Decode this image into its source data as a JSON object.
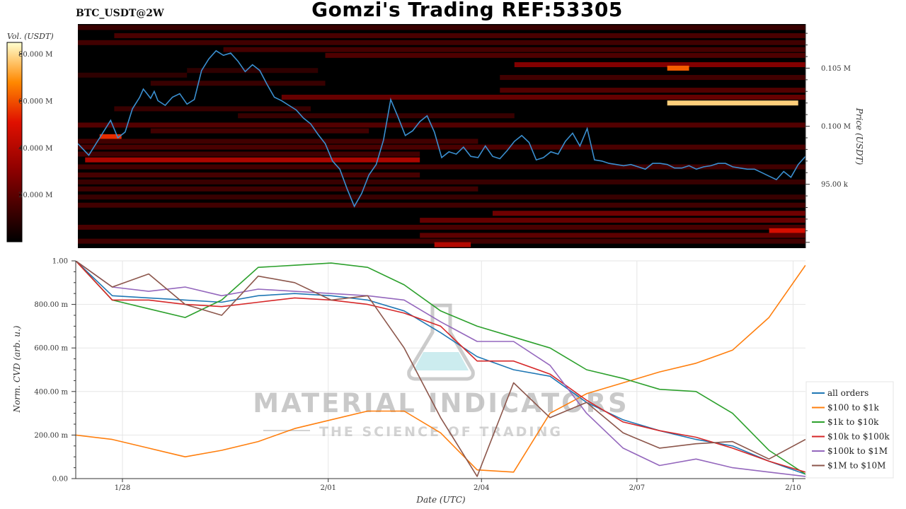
{
  "header": {
    "symbol": "BTC_USDT@2W",
    "title": "Gomzi's Trading REF:53305"
  },
  "watermark": {
    "line1": "MATERIAL INDICATORS",
    "line2": "THE SCIENCE OF TRADING"
  },
  "colors": {
    "all_orders": "#1f77b4",
    "s100_1k": "#ff7f0e",
    "s1k_10k": "#2ca02c",
    "s10k_100k": "#d62728",
    "s100k_1m": "#9467bd",
    "s1m_10m": "#8c564b",
    "heatmap_bg": "#000000",
    "price_line": "#3a8fd0"
  },
  "chart_data": [
    {
      "type": "heatmap",
      "title": "Gomzi's Trading REF:53305",
      "colorbar_label": "Vol. (USDT)",
      "colorbar_ticks": [
        "20.000 M",
        "40.000 M",
        "60.000 M",
        "80.000 M"
      ],
      "colorbar_tick_values": [
        20,
        40,
        60,
        80
      ],
      "colorbar_range": [
        0,
        85
      ],
      "ylabel": "Price (USDT)",
      "y_ticks": [
        "95.00 k",
        "0.100 M",
        "0.105 M"
      ],
      "y_tick_values": [
        95000,
        100000,
        105000
      ],
      "ylim": [
        89500,
        108800
      ],
      "x": [
        0,
        1.5,
        3,
        4.5,
        5.5,
        6.5,
        7.5,
        8.5,
        9,
        9.5,
        10,
        10.5,
        11,
        12,
        13,
        14,
        15,
        16,
        17,
        18,
        19,
        20,
        21,
        22,
        23,
        24,
        25,
        26,
        27,
        28,
        29,
        30,
        31,
        32,
        33,
        34,
        35,
        36,
        37,
        38,
        39,
        40,
        41,
        42,
        43,
        44,
        45,
        46,
        47,
        48,
        49,
        50,
        51,
        52,
        53,
        54,
        55,
        56,
        57,
        58,
        59,
        60,
        61,
        62,
        63,
        64,
        65,
        66,
        67,
        68,
        69,
        70,
        71,
        72,
        73,
        74,
        75,
        76,
        77,
        78,
        79,
        80,
        81,
        82,
        83,
        84,
        85,
        86,
        87,
        88,
        89,
        90,
        91,
        92,
        93,
        94,
        95,
        96,
        97,
        98,
        99,
        100
      ],
      "price": [
        98500,
        97500,
        99000,
        100500,
        99000,
        99500,
        101500,
        102500,
        103200,
        102800,
        102400,
        103000,
        102200,
        101800,
        102500,
        102800,
        101900,
        102300,
        104800,
        105800,
        106500,
        106100,
        106300,
        105600,
        104700,
        105300,
        104800,
        103600,
        102500,
        102200,
        101800,
        101400,
        100700,
        100200,
        99300,
        98500,
        97000,
        96300,
        94600,
        93100,
        94200,
        95800,
        96700,
        98800,
        102300,
        100800,
        99200,
        99600,
        100400,
        100900,
        99500,
        97300,
        97800,
        97600,
        98200,
        97400,
        97300,
        98300,
        97400,
        97200,
        97900,
        98700,
        99200,
        98600,
        97100,
        97300,
        97800,
        97600,
        98700,
        99400,
        98300,
        99800,
        97100,
        97000,
        96800,
        96700,
        96600,
        96700,
        96500,
        96300,
        96800,
        96800,
        96700,
        96400,
        96400,
        96600,
        96300,
        96500,
        96600,
        96800,
        96800,
        96500,
        96400,
        96300,
        96300,
        96000,
        95700,
        95400,
        96100,
        95600,
        96700,
        97400
      ],
      "bands": [
        {
          "price": 108500,
          "x0": 0,
          "x1": 100,
          "vol": 12
        },
        {
          "price": 107800,
          "x0": 5,
          "x1": 100,
          "vol": 16
        },
        {
          "price": 107200,
          "x0": 0,
          "x1": 100,
          "vol": 14
        },
        {
          "price": 106600,
          "x0": 20,
          "x1": 100,
          "vol": 15
        },
        {
          "price": 106100,
          "x0": 34,
          "x1": 100,
          "vol": 17
        },
        {
          "price": 105300,
          "x0": 60,
          "x1": 100,
          "vol": 28
        },
        {
          "price": 105000,
          "x0": 81,
          "x1": 84,
          "vol": 62
        },
        {
          "price": 104800,
          "x0": 15,
          "x1": 33,
          "vol": 10
        },
        {
          "price": 104400,
          "x0": 0,
          "x1": 15,
          "vol": 10
        },
        {
          "price": 104200,
          "x0": 58,
          "x1": 100,
          "vol": 14
        },
        {
          "price": 103700,
          "x0": 10,
          "x1": 34,
          "vol": 12
        },
        {
          "price": 103100,
          "x0": 58,
          "x1": 100,
          "vol": 18
        },
        {
          "price": 102500,
          "x0": 28,
          "x1": 100,
          "vol": 22
        },
        {
          "price": 102000,
          "x0": 81,
          "x1": 99,
          "vol": 78
        },
        {
          "price": 101500,
          "x0": 5,
          "x1": 32,
          "vol": 12
        },
        {
          "price": 100900,
          "x0": 22,
          "x1": 60,
          "vol": 12
        },
        {
          "price": 100100,
          "x0": 0,
          "x1": 100,
          "vol": 18
        },
        {
          "price": 99600,
          "x0": 10,
          "x1": 40,
          "vol": 14
        },
        {
          "price": 99100,
          "x0": 3,
          "x1": 6,
          "vol": 55
        },
        {
          "price": 98700,
          "x0": 0,
          "x1": 55,
          "vol": 14
        },
        {
          "price": 98200,
          "x0": 0,
          "x1": 100,
          "vol": 16
        },
        {
          "price": 97600,
          "x0": 0,
          "x1": 47,
          "vol": 14
        },
        {
          "price": 97100,
          "x0": 1,
          "x1": 47,
          "vol": 38
        },
        {
          "price": 96500,
          "x0": 0,
          "x1": 100,
          "vol": 14
        },
        {
          "price": 95800,
          "x0": 0,
          "x1": 47,
          "vol": 15
        },
        {
          "price": 95200,
          "x0": 0,
          "x1": 100,
          "vol": 12
        },
        {
          "price": 94600,
          "x0": 0,
          "x1": 55,
          "vol": 14
        },
        {
          "price": 93900,
          "x0": 0,
          "x1": 100,
          "vol": 12
        },
        {
          "price": 93200,
          "x0": 0,
          "x1": 100,
          "vol": 14
        },
        {
          "price": 92500,
          "x0": 57,
          "x1": 100,
          "vol": 24
        },
        {
          "price": 91900,
          "x0": 47,
          "x1": 100,
          "vol": 22
        },
        {
          "price": 91300,
          "x0": 0,
          "x1": 100,
          "vol": 16
        },
        {
          "price": 91000,
          "x0": 95,
          "x1": 100,
          "vol": 48
        },
        {
          "price": 90600,
          "x0": 47,
          "x1": 100,
          "vol": 20
        },
        {
          "price": 90100,
          "x0": 0,
          "x1": 100,
          "vol": 14
        },
        {
          "price": 89800,
          "x0": 49,
          "x1": 54,
          "vol": 40
        }
      ]
    },
    {
      "type": "line",
      "ylabel": "Norm. CVD (arb. u.)",
      "xlabel": "Date (UTC)",
      "y_ticks": [
        "0.00",
        "200.00 m",
        "400.00 m",
        "600.00 m",
        "800.00 m",
        "1.00"
      ],
      "y_tick_values": [
        0,
        0.2,
        0.4,
        0.6,
        0.8,
        1.0
      ],
      "ylim": [
        0,
        1.0
      ],
      "x_ticks": [
        "1/28",
        "2/01",
        "2/04",
        "2/07",
        "2/10"
      ],
      "x_tick_values": [
        6.4,
        34.6,
        55.6,
        76.9,
        98.3
      ],
      "x": [
        0,
        5,
        10,
        15,
        20,
        25,
        30,
        35,
        40,
        45,
        50,
        55,
        60,
        65,
        70,
        75,
        80,
        85,
        90,
        95,
        100
      ],
      "series": [
        {
          "name": "all orders",
          "key": "all_orders",
          "values": [
            1.0,
            0.84,
            0.83,
            0.82,
            0.81,
            0.84,
            0.85,
            0.84,
            0.82,
            0.77,
            0.67,
            0.56,
            0.5,
            0.47,
            0.35,
            0.27,
            0.22,
            0.18,
            0.15,
            0.08,
            0.02
          ]
        },
        {
          "name": "$100 to $1k",
          "key": "s100_1k",
          "values": [
            0.2,
            0.18,
            0.14,
            0.1,
            0.13,
            0.17,
            0.23,
            0.27,
            0.31,
            0.31,
            0.21,
            0.04,
            0.03,
            0.3,
            0.39,
            0.44,
            0.49,
            0.53,
            0.59,
            0.74,
            0.98
          ]
        },
        {
          "name": "$1k to $10k",
          "key": "s1k_10k",
          "values": [
            1.0,
            0.82,
            0.78,
            0.74,
            0.82,
            0.97,
            0.98,
            0.99,
            0.97,
            0.89,
            0.77,
            0.7,
            0.65,
            0.6,
            0.5,
            0.46,
            0.41,
            0.4,
            0.3,
            0.13,
            0.02
          ]
        },
        {
          "name": "$10k to $100k",
          "key": "s10k_100k",
          "values": [
            1.0,
            0.82,
            0.82,
            0.8,
            0.79,
            0.81,
            0.83,
            0.82,
            0.8,
            0.76,
            0.7,
            0.54,
            0.54,
            0.48,
            0.36,
            0.26,
            0.22,
            0.19,
            0.14,
            0.08,
            0.03
          ]
        },
        {
          "name": "$100k to $1M",
          "key": "s100k_1m",
          "values": [
            1.0,
            0.88,
            0.86,
            0.88,
            0.84,
            0.87,
            0.86,
            0.85,
            0.84,
            0.82,
            0.72,
            0.63,
            0.63,
            0.52,
            0.3,
            0.14,
            0.06,
            0.09,
            0.05,
            0.03,
            0.01
          ]
        },
        {
          "name": "$1M to $10M",
          "key": "s1m_10m",
          "values": [
            1.0,
            0.88,
            0.94,
            0.8,
            0.75,
            0.93,
            0.9,
            0.82,
            0.84,
            0.6,
            0.28,
            0.01,
            0.44,
            0.28,
            0.35,
            0.21,
            0.14,
            0.16,
            0.17,
            0.09,
            0.18
          ]
        }
      ],
      "legend_position": "right"
    }
  ]
}
